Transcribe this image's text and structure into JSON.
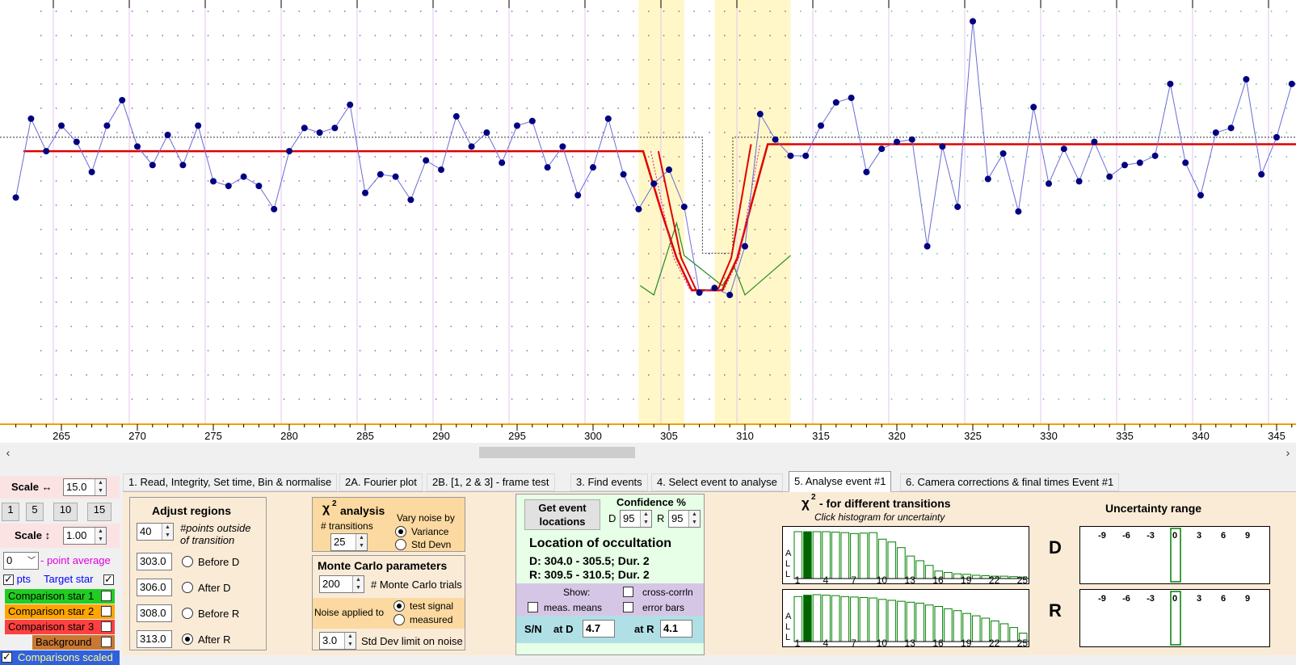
{
  "chart": {
    "x_ticks": [
      "265",
      "270",
      "275",
      "280",
      "285",
      "290",
      "295",
      "300",
      "305",
      "310",
      "315",
      "320",
      "325",
      "330",
      "335",
      "340",
      "345"
    ],
    "light_curve": [
      [
        262,
        0.96
      ],
      [
        263,
        1.3
      ],
      [
        264,
        1.16
      ],
      [
        265,
        1.27
      ],
      [
        266,
        1.2
      ],
      [
        267,
        1.07
      ],
      [
        268,
        1.27
      ],
      [
        269,
        1.38
      ],
      [
        270,
        1.18
      ],
      [
        271,
        1.1
      ],
      [
        272,
        1.23
      ],
      [
        273,
        1.1
      ],
      [
        274,
        1.27
      ],
      [
        275,
        1.03
      ],
      [
        276,
        1.01
      ],
      [
        277,
        1.05
      ],
      [
        278,
        1.01
      ],
      [
        279,
        0.91
      ],
      [
        280,
        1.16
      ],
      [
        281,
        1.26
      ],
      [
        282,
        1.24
      ],
      [
        283,
        1.26
      ],
      [
        284,
        1.36
      ],
      [
        285,
        0.98
      ],
      [
        286,
        1.06
      ],
      [
        287,
        1.05
      ],
      [
        288,
        0.95
      ],
      [
        289,
        1.12
      ],
      [
        290,
        1.08
      ],
      [
        291,
        1.31
      ],
      [
        292,
        1.18
      ],
      [
        293,
        1.24
      ],
      [
        294,
        1.11
      ],
      [
        295,
        1.27
      ],
      [
        296,
        1.29
      ],
      [
        297,
        1.09
      ],
      [
        298,
        1.18
      ],
      [
        299,
        0.97
      ],
      [
        300,
        1.09
      ],
      [
        301,
        1.3
      ],
      [
        302,
        1.06
      ],
      [
        303,
        0.91
      ],
      [
        304,
        1.02
      ],
      [
        305,
        1.08
      ],
      [
        306,
        0.92
      ],
      [
        307,
        0.55
      ],
      [
        308,
        0.57
      ],
      [
        309,
        0.54
      ],
      [
        310,
        0.75
      ],
      [
        311,
        1.32
      ],
      [
        312,
        1.21
      ],
      [
        313,
        1.14
      ],
      [
        314,
        1.14
      ],
      [
        315,
        1.27
      ],
      [
        316,
        1.37
      ],
      [
        317,
        1.39
      ],
      [
        318,
        1.07
      ],
      [
        319,
        1.17
      ],
      [
        320,
        1.2
      ],
      [
        321,
        1.21
      ],
      [
        322,
        0.75
      ],
      [
        323,
        1.18
      ],
      [
        324,
        0.92
      ],
      [
        325,
        1.72
      ],
      [
        326,
        1.04
      ],
      [
        327,
        1.15
      ],
      [
        328,
        0.9
      ],
      [
        329,
        1.35
      ],
      [
        330,
        1.02
      ],
      [
        331,
        1.17
      ],
      [
        332,
        1.03
      ],
      [
        333,
        1.2
      ],
      [
        334,
        1.05
      ],
      [
        335,
        1.1
      ],
      [
        336,
        1.11
      ],
      [
        337,
        1.14
      ],
      [
        338,
        1.45
      ],
      [
        339,
        1.11
      ],
      [
        340,
        0.97
      ],
      [
        341,
        1.24
      ],
      [
        342,
        1.26
      ],
      [
        343,
        1.47
      ],
      [
        344,
        1.06
      ],
      [
        345,
        1.22
      ],
      [
        346,
        1.45
      ],
      [
        347,
        1.45
      ]
    ],
    "model_line": [
      [
        262.5,
        1.16
      ],
      [
        303.3,
        1.16
      ],
      [
        304.5,
        0.9
      ],
      [
        305.5,
        0.7
      ],
      [
        306.5,
        0.56
      ],
      [
        308.5,
        0.56
      ],
      [
        309.5,
        0.7
      ],
      [
        310.5,
        0.95
      ],
      [
        311.5,
        1.19
      ],
      [
        349,
        1.19
      ]
    ],
    "colors": {
      "points": "#000080",
      "curve": "#6b6bd6",
      "model": "#e00000",
      "band": "#fff7c8",
      "grid_v": "#e3c6f0",
      "grid_dot": "#7a00aa",
      "grid_dot_right": "#00a060",
      "axis": "#f0a000"
    }
  },
  "scale": {
    "h_label": "Scale ↔",
    "h_value": "15.0",
    "presets": [
      "1",
      "5",
      "10",
      "15"
    ],
    "v_label": "Scale ↕",
    "v_value": "1.00",
    "avg_value": "0",
    "avg_label": "- point average"
  },
  "series": {
    "pts": "pts",
    "target": "Target star",
    "comp1": "Comparison star 1",
    "comp2": "Comparison star 2",
    "comp3": "Comparison star 3",
    "bg": "Background",
    "scaled": "Comparisons scaled"
  },
  "tabs": [
    "1.  Read, Integrity, Set time, Bin & normalise",
    "2A. Fourier plot",
    "2B. [1, 2 & 3] - frame test",
    "3. Find events",
    "4. Select event to analyse",
    "5. Analyse event #1",
    "6. Camera corrections & final times Event #1"
  ],
  "adjust": {
    "title": "Adjust regions",
    "points_value": "40",
    "points_label1": "#points outside",
    "points_label2": "of transition",
    "rows": [
      {
        "value": "303.0",
        "label": "Before D"
      },
      {
        "value": "306.0",
        "label": "After D"
      },
      {
        "value": "308.0",
        "label": "Before R"
      },
      {
        "value": "313.0",
        "label": "After R"
      }
    ]
  },
  "chi": {
    "title": "analysis",
    "chi": "χ",
    "sup": "2",
    "trans_label": "# transitions",
    "trans_value": "25",
    "vary_label": "Vary noise by",
    "opt1": "Variance",
    "opt2": "Std Devn"
  },
  "monte": {
    "title": "Monte Carlo parameters",
    "trials_value": "200",
    "trials_label": "# Monte Carlo trials",
    "noise_label": "Noise applied to",
    "opt1": "test signal",
    "opt2": "measured",
    "std_value": "3.0",
    "std_label": "Std Dev limit on noise"
  },
  "location": {
    "get_btn1": "Get event",
    "get_btn2": "locations",
    "conf_label": "Confidence %",
    "d": "D",
    "d_val": "95",
    "r": "R",
    "r_val": "95",
    "title": "Location of occultation",
    "d_line": "D: 304.0 - 305.5; Dur. 2",
    "r_line": "R: 309.5 - 310.5; Dur. 2",
    "show": "Show:",
    "cross": "cross-corrln",
    "means": "meas. means",
    "errbars": "error bars",
    "sn": "S/N",
    "at_d": "at D",
    "sn_d": "4.7",
    "at_r": "at R",
    "sn_r": "4.1"
  },
  "hist": {
    "title": "- for different transitions",
    "chi": "χ",
    "sup": "2",
    "subtitle": "Click histogram for uncertainty",
    "ticks": [
      "1",
      "4",
      "7",
      "10",
      "13",
      "16",
      "19",
      "22",
      "25"
    ],
    "side": [
      "A",
      "L",
      "L"
    ],
    "D": "D",
    "R": "R",
    "d_values": [
      1.0,
      1.0,
      1.0,
      1.0,
      0.99,
      0.98,
      0.96,
      0.97,
      0.98,
      0.84,
      0.78,
      0.66,
      0.48,
      0.38,
      0.28,
      0.16,
      0.13,
      0.1,
      0.09,
      0.07,
      0.06,
      0.05,
      0.05,
      0.04,
      0.03
    ],
    "r_values": [
      0.96,
      0.99,
      1.0,
      0.99,
      0.98,
      0.96,
      0.95,
      0.94,
      0.93,
      0.9,
      0.88,
      0.86,
      0.84,
      0.82,
      0.78,
      0.75,
      0.7,
      0.66,
      0.6,
      0.55,
      0.5,
      0.44,
      0.38,
      0.3,
      0.18
    ]
  },
  "unc": {
    "title": "Uncertainty range",
    "ticks": [
      "-9",
      "-6",
      "-3",
      "0",
      "3",
      "6",
      "9"
    ]
  }
}
